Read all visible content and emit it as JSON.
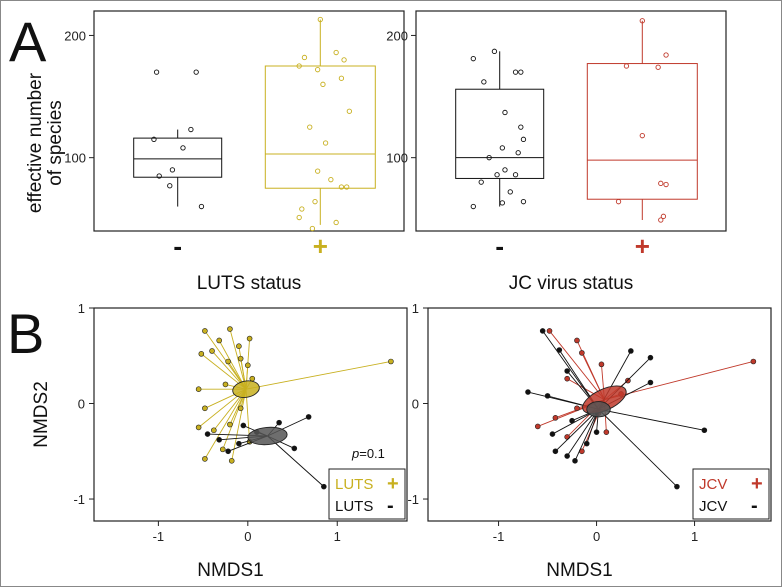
{
  "colors": {
    "lutsPos": "#c8b020",
    "jcvPos": "#c0392b",
    "neg": "#111111",
    "ellipseNeg": "#555555"
  },
  "figure": {
    "panelA_letter": "A",
    "panelB_letter": "B"
  },
  "chart_data": [
    {
      "type": "box",
      "id": "A1",
      "ylabel_line1": "effective number",
      "ylabel_line2": "of species",
      "xlabel": "LUTS status",
      "ylim": [
        40,
        220
      ],
      "yticks": [
        100,
        200
      ],
      "groups": [
        {
          "name": "-",
          "color": "neg",
          "q1": 84,
          "median": 99,
          "q3": 116,
          "wlo": 60,
          "whi": 123,
          "points": [
            [
              -0.4,
              170
            ],
            [
              0.35,
              170
            ],
            [
              -0.1,
              90
            ],
            [
              0.25,
              123
            ],
            [
              0.1,
              108
            ],
            [
              -0.15,
              77
            ],
            [
              -0.35,
              85
            ],
            [
              0.45,
              60
            ],
            [
              -0.45,
              115
            ]
          ]
        },
        {
          "name": "+",
          "color": "lutsPos",
          "q1": 75,
          "median": 103,
          "q3": 175,
          "wlo": 45,
          "whi": 213,
          "points": [
            [
              0.0,
              213
            ],
            [
              -0.3,
              182
            ],
            [
              0.3,
              186
            ],
            [
              0.45,
              180
            ],
            [
              0.55,
              138
            ],
            [
              0.4,
              165
            ],
            [
              -0.05,
              172
            ],
            [
              -0.4,
              175
            ],
            [
              0.05,
              160
            ],
            [
              -0.2,
              125
            ],
            [
              0.1,
              112
            ],
            [
              -0.05,
              89
            ],
            [
              0.2,
              82
            ],
            [
              0.4,
              76
            ],
            [
              0.5,
              76
            ],
            [
              -0.1,
              64
            ],
            [
              -0.35,
              58
            ],
            [
              -0.15,
              42
            ],
            [
              0.3,
              47
            ],
            [
              -0.4,
              51
            ]
          ]
        }
      ]
    },
    {
      "type": "box",
      "id": "A2",
      "xlabel": "JC virus status",
      "ylim": [
        40,
        220
      ],
      "yticks": [
        100,
        200
      ],
      "groups": [
        {
          "name": "-",
          "color": "neg",
          "q1": 83,
          "median": 100,
          "q3": 156,
          "wlo": 60,
          "whi": 187,
          "points": [
            [
              -0.5,
              181
            ],
            [
              -0.1,
              187
            ],
            [
              0.3,
              170
            ],
            [
              0.4,
              170
            ],
            [
              -0.3,
              162
            ],
            [
              0.1,
              137
            ],
            [
              0.4,
              125
            ],
            [
              0.45,
              115
            ],
            [
              0.35,
              104
            ],
            [
              -0.2,
              100
            ],
            [
              0.05,
              108
            ],
            [
              0.1,
              90
            ],
            [
              -0.05,
              86
            ],
            [
              0.3,
              86
            ],
            [
              -0.35,
              80
            ],
            [
              0.2,
              72
            ],
            [
              0.45,
              64
            ],
            [
              -0.5,
              60
            ],
            [
              0.05,
              63
            ]
          ]
        },
        {
          "name": "+",
          "color": "jcvPos",
          "q1": 66,
          "median": 98,
          "q3": 177,
          "wlo": 49,
          "whi": 212,
          "points": [
            [
              0.0,
              212
            ],
            [
              -0.3,
              175
            ],
            [
              0.3,
              174
            ],
            [
              0.45,
              184
            ],
            [
              0.0,
              118
            ],
            [
              0.35,
              79
            ],
            [
              0.45,
              78
            ],
            [
              -0.45,
              64
            ],
            [
              0.4,
              52
            ],
            [
              0.35,
              49
            ]
          ]
        }
      ]
    },
    {
      "type": "scatter",
      "id": "B1",
      "xlabel": "NMDS1",
      "ylabel": "NMDS2",
      "xlim": [
        -1.72,
        1.78
      ],
      "ylim": [
        -1.23,
        1.0
      ],
      "xticks": [
        -1,
        0,
        1
      ],
      "yticks": [
        -1,
        0,
        1
      ],
      "pvalue_label": "p",
      "pvalue_text": "=0.1",
      "legend": [
        {
          "label": "LUTS",
          "symbol": "+",
          "color": "lutsPos"
        },
        {
          "label": "LUTS",
          "symbol": "-",
          "color": "neg"
        }
      ],
      "groups": [
        {
          "name": "LUTS +",
          "color": "lutsPos",
          "center": [
            -0.02,
            0.15
          ],
          "ellipse": [
            0.15,
            0.085,
            -10
          ],
          "points": [
            [
              -0.48,
              0.76
            ],
            [
              -0.2,
              0.78
            ],
            [
              -0.32,
              0.66
            ],
            [
              -0.1,
              0.6
            ],
            [
              0.02,
              0.68
            ],
            [
              -0.4,
              0.55
            ],
            [
              -0.52,
              0.52
            ],
            [
              -0.22,
              0.44
            ],
            [
              -0.08,
              0.47
            ],
            [
              0.0,
              0.4
            ],
            [
              -0.55,
              0.15
            ],
            [
              -0.25,
              0.2
            ],
            [
              0.05,
              0.26
            ],
            [
              -0.48,
              -0.05
            ],
            [
              -0.55,
              -0.25
            ],
            [
              -0.38,
              -0.28
            ],
            [
              -0.2,
              -0.22
            ],
            [
              -0.08,
              -0.05
            ],
            [
              -0.28,
              -0.48
            ],
            [
              -0.48,
              -0.58
            ],
            [
              -0.18,
              -0.6
            ],
            [
              0.02,
              -0.4
            ],
            [
              1.6,
              0.44
            ]
          ]
        },
        {
          "name": "LUTS -",
          "color": "neg",
          "center": [
            0.22,
            -0.34
          ],
          "ellipse": [
            0.22,
            0.09,
            -5
          ],
          "points": [
            [
              -0.45,
              -0.32
            ],
            [
              -0.32,
              -0.38
            ],
            [
              -0.22,
              -0.5
            ],
            [
              -0.1,
              -0.42
            ],
            [
              -0.05,
              -0.23
            ],
            [
              0.1,
              -0.3
            ],
            [
              0.35,
              -0.2
            ],
            [
              0.68,
              -0.14
            ],
            [
              0.52,
              -0.47
            ],
            [
              0.85,
              -0.87
            ]
          ]
        }
      ]
    },
    {
      "type": "scatter",
      "id": "B2",
      "xlabel": "NMDS1",
      "xlim": [
        -1.72,
        1.78
      ],
      "ylim": [
        -1.23,
        1.0
      ],
      "xticks": [
        -1,
        0,
        1
      ],
      "yticks": [
        -1,
        0,
        1
      ],
      "legend": [
        {
          "label": "JCV",
          "symbol": "+",
          "color": "jcvPos"
        },
        {
          "label": "JCV",
          "symbol": "-",
          "color": "neg"
        }
      ],
      "groups": [
        {
          "name": "JCV +",
          "color": "jcvPos",
          "center": [
            0.08,
            0.04
          ],
          "ellipse": [
            0.24,
            0.11,
            -25
          ],
          "points": [
            [
              -0.48,
              0.76
            ],
            [
              -0.2,
              0.66
            ],
            [
              -0.15,
              0.53
            ],
            [
              0.05,
              0.41
            ],
            [
              -0.3,
              0.26
            ],
            [
              0.32,
              0.24
            ],
            [
              0.25,
              0.1
            ],
            [
              -0.2,
              -0.05
            ],
            [
              -0.42,
              -0.15
            ],
            [
              -0.6,
              -0.24
            ],
            [
              -0.3,
              -0.35
            ],
            [
              -0.15,
              -0.5
            ],
            [
              0.1,
              -0.3
            ],
            [
              0.02,
              -0.1
            ],
            [
              1.6,
              0.44
            ]
          ]
        },
        {
          "name": "JCV -",
          "color": "neg",
          "center": [
            0.02,
            -0.06
          ],
          "ellipse": [
            0.12,
            0.08,
            0
          ],
          "points": [
            [
              -0.55,
              0.76
            ],
            [
              -0.38,
              0.56
            ],
            [
              -0.3,
              0.34
            ],
            [
              -0.7,
              0.12
            ],
            [
              -0.5,
              0.08
            ],
            [
              0.35,
              0.55
            ],
            [
              0.55,
              0.48
            ],
            [
              0.55,
              0.22
            ],
            [
              -0.25,
              -0.18
            ],
            [
              -0.45,
              -0.32
            ],
            [
              -0.42,
              -0.5
            ],
            [
              -0.3,
              -0.55
            ],
            [
              -0.1,
              -0.42
            ],
            [
              0.0,
              -0.3
            ],
            [
              -0.22,
              -0.6
            ],
            [
              1.1,
              -0.28
            ],
            [
              0.82,
              -0.87
            ]
          ]
        }
      ]
    }
  ]
}
